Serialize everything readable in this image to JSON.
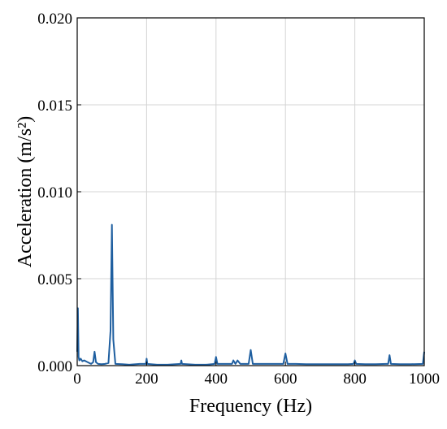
{
  "chart_data": {
    "type": "line",
    "title": "",
    "xlabel": "Frequency (Hz)",
    "ylabel": "Acceleration (m/s²)",
    "xlim": [
      0,
      1000
    ],
    "ylim": [
      0,
      0.02
    ],
    "x_ticks": [
      0,
      200,
      400,
      600,
      800,
      1000
    ],
    "x_tick_labels": [
      "0",
      "200",
      "400",
      "600",
      "800",
      "1000"
    ],
    "y_ticks": [
      0,
      0.005,
      0.01,
      0.015,
      0.02
    ],
    "y_tick_labels": [
      "0.000",
      "0.005",
      "0.010",
      "0.015",
      "0.020"
    ],
    "grid": true,
    "legend": "none",
    "series": [
      {
        "color": "#1f5fa0",
        "x": [
          0,
          2,
          4,
          6,
          10,
          15,
          20,
          30,
          40,
          46,
          50,
          54,
          60,
          70,
          80,
          90,
          96,
          100,
          104,
          110,
          130,
          150,
          180,
          198,
          200,
          202,
          230,
          260,
          298,
          300,
          302,
          340,
          370,
          396,
          400,
          404,
          430,
          446,
          450,
          456,
          462,
          470,
          480,
          494,
          500,
          506,
          520,
          550,
          570,
          594,
          600,
          606,
          630,
          660,
          690,
          720,
          750,
          780,
          796,
          800,
          804,
          830,
          860,
          890,
          896,
          900,
          904,
          930,
          960,
          996,
          1000
        ],
        "y": [
          0.0008,
          0.0033,
          0.0005,
          0.0003,
          0.0004,
          0.00025,
          0.0003,
          0.0002,
          0.0001,
          0.0002,
          0.0008,
          0.0002,
          0.0001,
          8e-05,
          0.0001,
          0.00015,
          0.002,
          0.0081,
          0.0015,
          0.0001,
          8e-05,
          5e-05,
          0.0001,
          0.0001,
          0.0004,
          0.0001,
          5e-05,
          5e-05,
          0.0001,
          0.0003,
          0.0001,
          5e-05,
          5e-05,
          0.0001,
          0.0005,
          0.0001,
          0.0001,
          0.0001,
          0.0003,
          0.0001,
          0.0003,
          0.0001,
          0.0001,
          0.0001,
          0.0009,
          0.0001,
          0.0001,
          0.0001,
          0.0001,
          0.0001,
          0.0007,
          0.0001,
          0.0001,
          8e-05,
          8e-05,
          8e-05,
          8e-05,
          8e-05,
          0.0001,
          0.0003,
          0.0001,
          8e-05,
          8e-05,
          0.0001,
          0.0001,
          0.0006,
          0.0001,
          8e-05,
          8e-05,
          0.0001,
          0.0008
        ]
      }
    ]
  }
}
